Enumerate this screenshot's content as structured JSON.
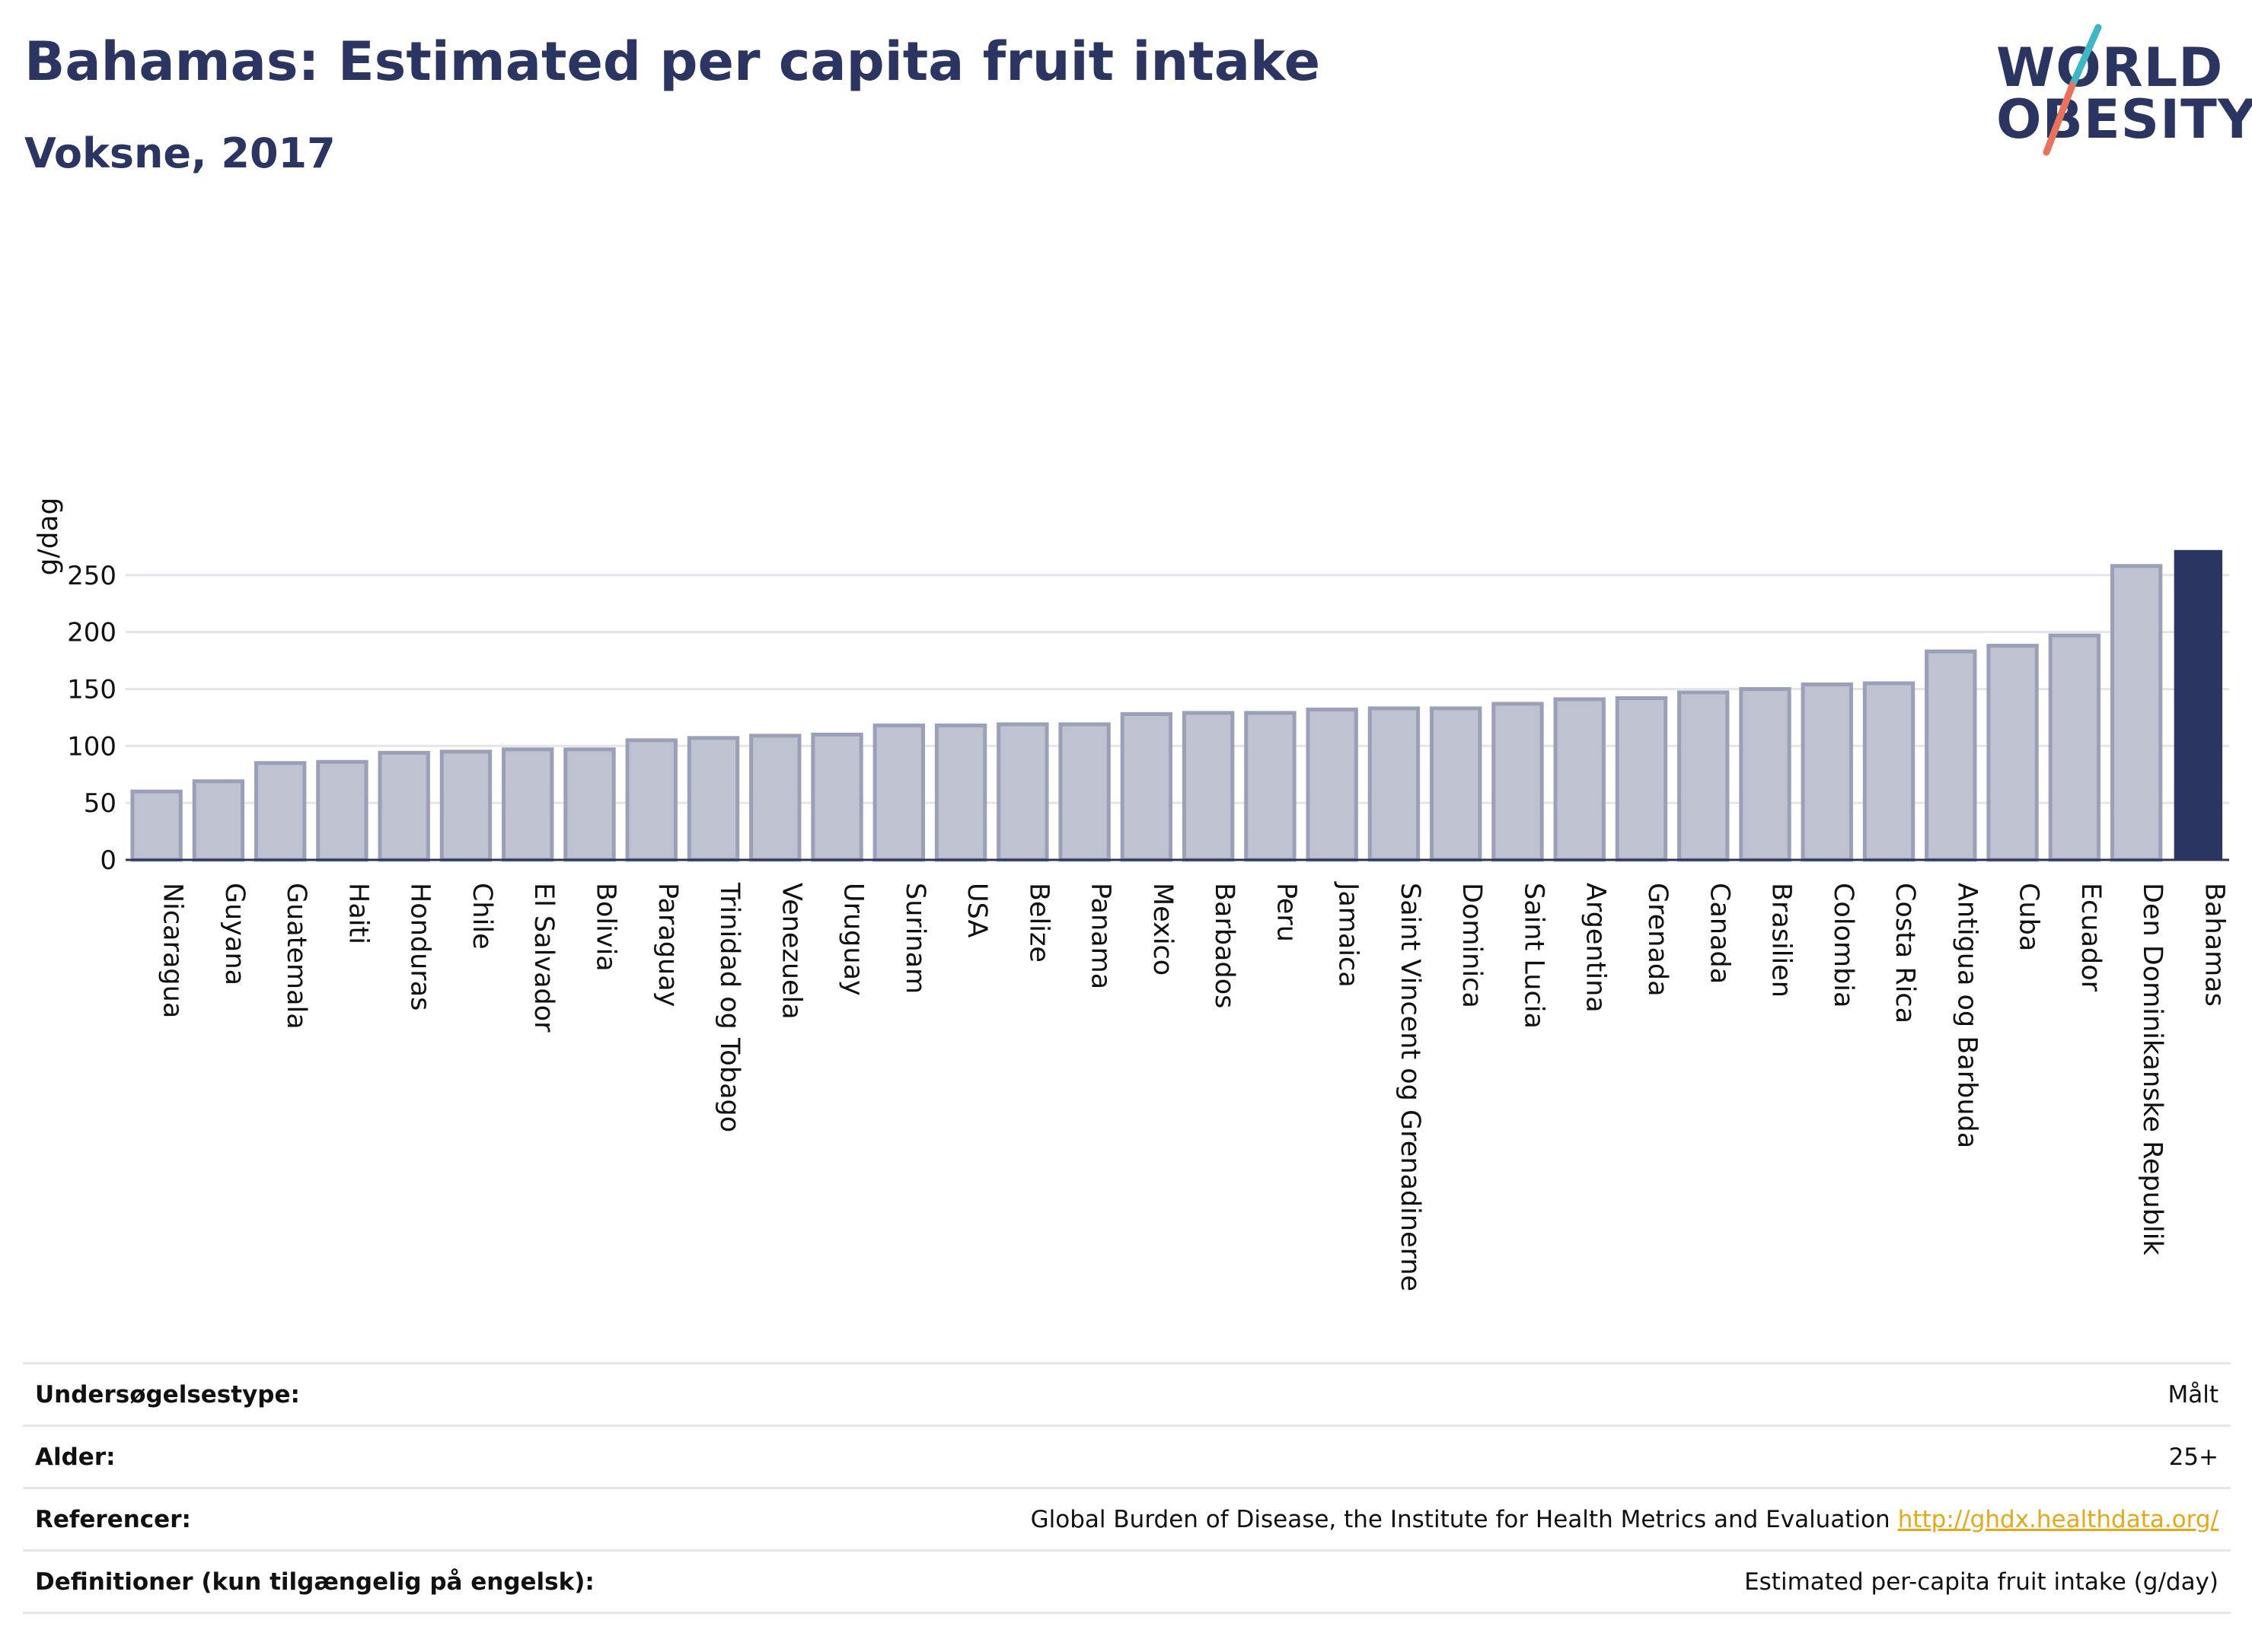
{
  "header": {
    "title": "Bahamas: Estimated per capita fruit intake",
    "subtitle": "Voksne, 2017"
  },
  "logo": {
    "line1": "WORLD",
    "line2": "OBESITY",
    "colors": {
      "text": "#2b3561",
      "slash_top": "#3bb8c4",
      "slash_bottom": "#e8735a"
    }
  },
  "chart_data": {
    "type": "bar",
    "ylabel": "g/dag",
    "xlabel": "",
    "ylim": [
      0,
      275
    ],
    "yticks": [
      0,
      50,
      100,
      150,
      200,
      250
    ],
    "grid": true,
    "categories": [
      "Nicaragua",
      "Guyana",
      "Guatemala",
      "Haiti",
      "Honduras",
      "Chile",
      "El Salvador",
      "Bolivia",
      "Paraguay",
      "Trinidad og Tobago",
      "Venezuela",
      "Uruguay",
      "Surinam",
      "USA",
      "Belize",
      "Panama",
      "Mexico",
      "Barbados",
      "Peru",
      "Jamaica",
      "Saint Vincent og Grenadinerne",
      "Dominica",
      "Saint Lucia",
      "Argentina",
      "Grenada",
      "Canada",
      "Brasilien",
      "Colombia",
      "Costa Rica",
      "Antigua og Barbuda",
      "Cuba",
      "Ecuador",
      "Den Dominikanske Republik",
      "Bahamas"
    ],
    "values": [
      60,
      69,
      85,
      86,
      94,
      95,
      97,
      97,
      105,
      107,
      109,
      110,
      118,
      118,
      119,
      119,
      128,
      129,
      129,
      132,
      133,
      133,
      137,
      141,
      142,
      147,
      150,
      154,
      155,
      183,
      188,
      197,
      258,
      272
    ],
    "highlight": "Bahamas",
    "colors": {
      "bar": "#bfc2d0",
      "bar_border": "#9aa0b8",
      "highlight": "#2b3561"
    }
  },
  "info": [
    {
      "key": "Undersøgelsestype:",
      "value": "Målt"
    },
    {
      "key": "Alder:",
      "value": "25+"
    },
    {
      "key": "Referencer:",
      "value": "Global Burden of Disease, the Institute for Health Metrics and Evaluation",
      "link": "http://ghdx.healthdata.org/"
    },
    {
      "key": "Definitioner (kun tilgængelig på engelsk):",
      "value": "Estimated per-capita fruit intake (g/day)"
    }
  ]
}
